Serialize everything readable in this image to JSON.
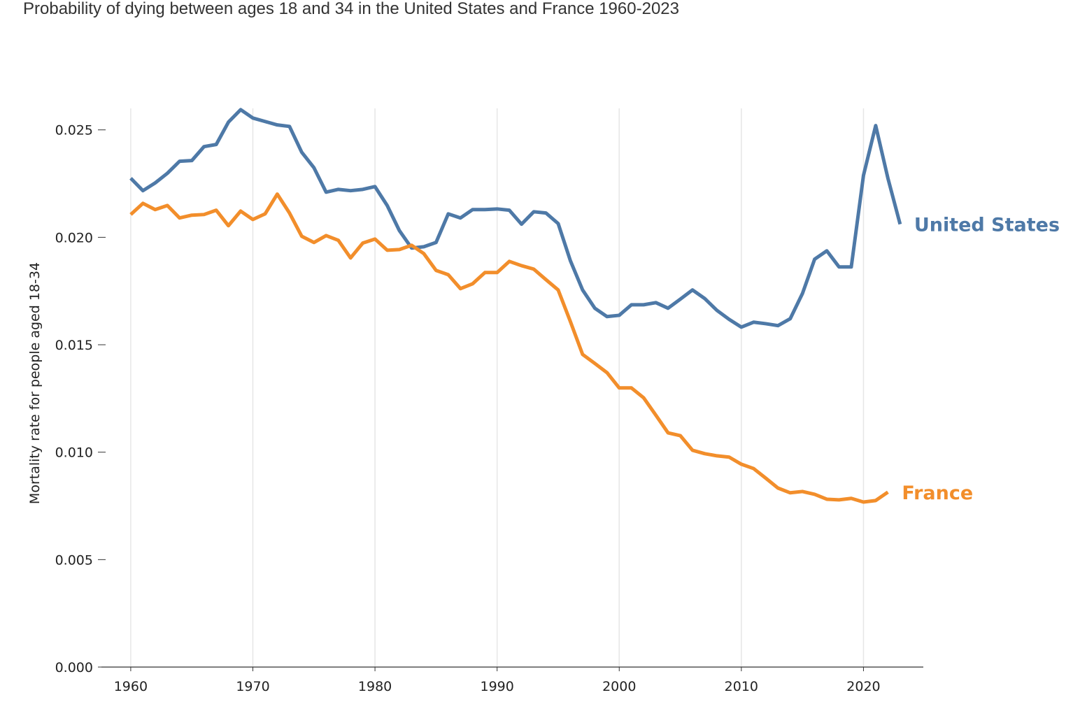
{
  "chart_data": {
    "type": "line",
    "title": "Probability of dying between ages 18 and 34 in the United States and France 1960-2023",
    "y_label": "Mortality rate for people aged 18-34",
    "x": [
      1960,
      1961,
      1962,
      1963,
      1964,
      1965,
      1966,
      1967,
      1968,
      1969,
      1970,
      1971,
      1972,
      1973,
      1974,
      1975,
      1976,
      1977,
      1978,
      1979,
      1980,
      1981,
      1982,
      1983,
      1984,
      1985,
      1986,
      1987,
      1988,
      1989,
      1990,
      1991,
      1992,
      1993,
      1994,
      1995,
      1996,
      1997,
      1998,
      1999,
      2000,
      2001,
      2002,
      2003,
      2004,
      2005,
      2006,
      2007,
      2008,
      2009,
      2010,
      2011,
      2012,
      2013,
      2014,
      2015,
      2016,
      2017,
      2018,
      2019,
      2020,
      2021,
      2022,
      2023
    ],
    "series": [
      {
        "name": "United States",
        "color": "#4e79a7",
        "values": [
          0.02275,
          0.02217,
          0.02253,
          0.02298,
          0.02354,
          0.02357,
          0.02422,
          0.02432,
          0.02536,
          0.02594,
          0.02555,
          0.02539,
          0.02523,
          0.02516,
          0.02396,
          0.02324,
          0.0221,
          0.02223,
          0.02217,
          0.02223,
          0.02236,
          0.02148,
          0.02031,
          0.0195,
          0.01956,
          0.01976,
          0.02109,
          0.0209,
          0.02129,
          0.02129,
          0.02132,
          0.02126,
          0.02061,
          0.02119,
          0.02113,
          0.02064,
          0.01891,
          0.01755,
          0.0167,
          0.01631,
          0.01637,
          0.01686,
          0.01686,
          0.01696,
          0.0167,
          0.01712,
          0.01755,
          0.01715,
          0.0166,
          0.01618,
          0.01582,
          0.01605,
          0.01598,
          0.01589,
          0.01621,
          0.01738,
          0.01898,
          0.01937,
          0.01862,
          0.01862,
          0.02288,
          0.0252,
          0.02275,
          0.02061
        ]
      },
      {
        "name": "France",
        "color": "#f28e2b",
        "values": [
          0.02106,
          0.02158,
          0.02129,
          0.02148,
          0.0209,
          0.02103,
          0.02106,
          0.02126,
          0.02054,
          0.02122,
          0.02083,
          0.02109,
          0.02201,
          0.02113,
          0.02005,
          0.01976,
          0.02008,
          0.01986,
          0.01904,
          0.01973,
          0.01992,
          0.0194,
          0.01943,
          0.01963,
          0.01924,
          0.01846,
          0.01826,
          0.01761,
          0.01784,
          0.01836,
          0.01836,
          0.01888,
          0.01868,
          0.01852,
          0.01803,
          0.01755,
          0.01608,
          0.01455,
          0.01413,
          0.0137,
          0.01299,
          0.01299,
          0.01253,
          0.01172,
          0.0109,
          0.01077,
          0.01009,
          0.00993,
          0.00983,
          0.00977,
          0.00944,
          0.00924,
          0.00879,
          0.00833,
          0.00811,
          0.00817,
          0.00804,
          0.00781,
          0.00778,
          0.00785,
          0.00768,
          0.00775,
          0.00814,
          null
        ]
      }
    ],
    "xlim": [
      1957.6,
      2024.9
    ],
    "xticks": [
      1960,
      1970,
      1980,
      1990,
      2000,
      2010,
      2020
    ],
    "ylim": [
      0,
      0.026
    ],
    "yticks": [
      {
        "value": 0,
        "label": "0.000"
      },
      0.005,
      {
        "value": 0.01,
        "label": "0.010"
      },
      0.015,
      {
        "value": 0.02,
        "label": "0.020"
      },
      0.025
    ],
    "grid": "x"
  }
}
